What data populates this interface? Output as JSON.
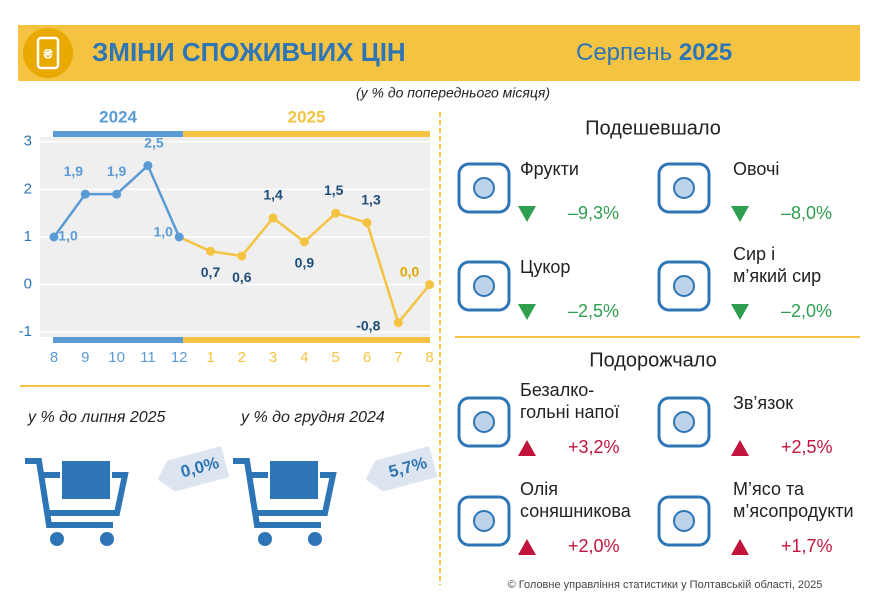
{
  "header": {
    "title": "ЗМІНИ СПОЖИВЧИХ ЦІН",
    "month": "Серпень",
    "year": "2025"
  },
  "chart_data": {
    "type": "line",
    "subtitle": "(у % до попереднього місяця)",
    "periods": [
      {
        "label": "2024",
        "color": "#5b9bd5"
      },
      {
        "label": "2025",
        "color": "#f5c342"
      }
    ],
    "categories": [
      "8",
      "9",
      "10",
      "11",
      "12",
      "1",
      "2",
      "3",
      "4",
      "5",
      "6",
      "7",
      "8"
    ],
    "values": [
      1.0,
      1.9,
      1.9,
      2.5,
      1.0,
      0.7,
      0.6,
      1.4,
      0.9,
      1.5,
      1.3,
      -0.8,
      0.0
    ],
    "value_labels": [
      "1,0",
      "1,9",
      "1,9",
      "2,5",
      "1,0",
      "0,7",
      "0,6",
      "1,4",
      "0,9",
      "1,5",
      "1,3",
      "-0,8",
      "0,0"
    ],
    "point_colors": [
      "#5b9bd5",
      "#5b9bd5",
      "#5b9bd5",
      "#5b9bd5",
      "#5b9bd5",
      "#f5c342",
      "#f5c342",
      "#f5c342",
      "#f5c342",
      "#f5c342",
      "#f5c342",
      "#f5c342",
      "#f5c342"
    ],
    "label_color": "#1f4e79",
    "last_label_color": "#e0a800",
    "ylim": [
      -1.1,
      3.1
    ],
    "yticks": [
      3,
      2,
      1,
      0,
      -1
    ],
    "grid": true
  },
  "summary": [
    {
      "label": "у % до липня 2025",
      "value": "0,0%"
    },
    {
      "label": "у % до грудня 2024",
      "value": "5,7%"
    }
  ],
  "cheaper": {
    "title": "Подешевшало",
    "color": "#2e9e4f",
    "items": [
      {
        "name": [
          "Фрукти"
        ],
        "value": "–9,3%"
      },
      {
        "name": [
          "Овочі"
        ],
        "value": "–8,0%"
      },
      {
        "name": [
          "Цукор"
        ],
        "value": "–2,5%"
      },
      {
        "name": [
          "Сир і",
          "м’який сир"
        ],
        "value": "–2,0%"
      }
    ]
  },
  "pricier": {
    "title": "Подорожчало",
    "color": "#c0143c",
    "items": [
      {
        "name": [
          "Безалко-",
          "гольні напої"
        ],
        "value": "+3,2%"
      },
      {
        "name": [
          "Зв’язок"
        ],
        "value": "+2,5%"
      },
      {
        "name": [
          "Олія",
          "соняшникова"
        ],
        "value": "+2,0%"
      },
      {
        "name": [
          "М’ясо та",
          "м’ясопродукти"
        ],
        "value": "+1,7%"
      }
    ]
  },
  "footer": "© Головне управління статистики у Полтавській області, 2025"
}
